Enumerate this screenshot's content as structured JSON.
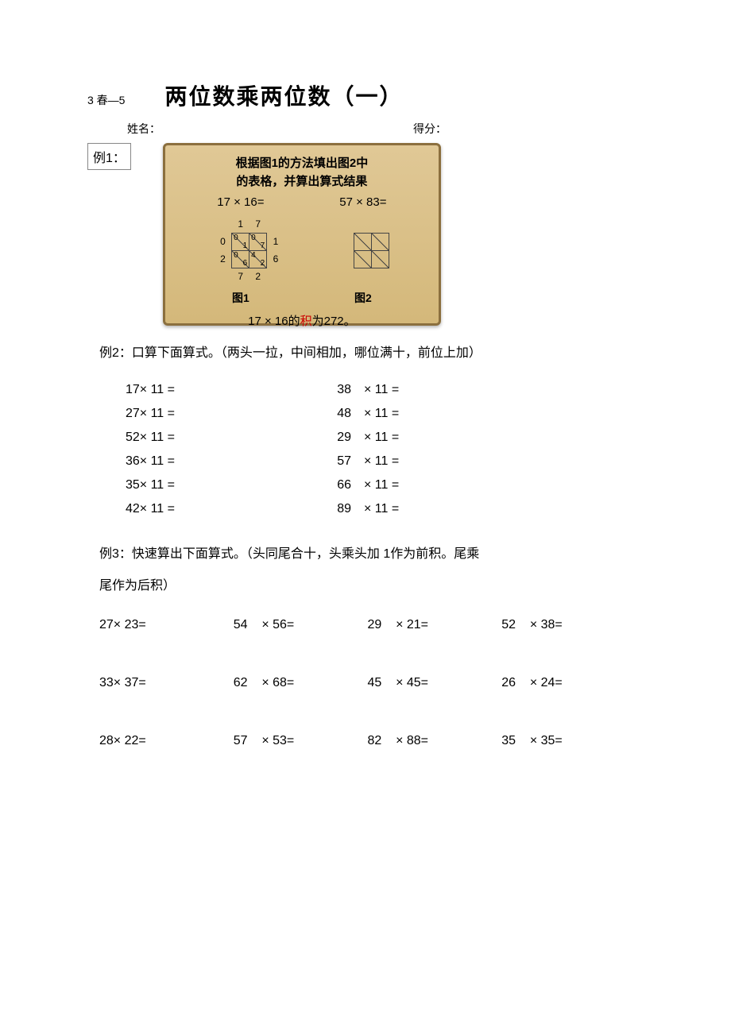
{
  "header": {
    "tag": "3 春—5",
    "title": "两位数乘两位数（一）",
    "name_label": "姓名：",
    "score_label": "得分："
  },
  "example1": {
    "label": "例1：",
    "scroll_text1": "根据图1的方法填出图2中",
    "scroll_text2": "的表格，并算出算式结果",
    "eq1": "17 × 16=",
    "eq2": "57 × 83=",
    "fig1_label": "图1",
    "fig2_label": "图2",
    "lattice1": {
      "top": [
        "1",
        "7"
      ],
      "cells": [
        [
          {
            "tl": "0",
            "br": "1"
          },
          {
            "tl": "0",
            "br": "7"
          }
        ],
        [
          {
            "tl": "0",
            "br": "6"
          },
          {
            "tl": "4",
            "br": "2"
          }
        ]
      ],
      "left": [
        "0",
        "2"
      ],
      "right": [
        "1",
        "6"
      ],
      "bottom": [
        "7",
        "2"
      ]
    },
    "lattice2": {
      "cells": [
        [
          {
            "tl": "",
            "br": ""
          },
          {
            "tl": "",
            "br": ""
          }
        ],
        [
          {
            "tl": "",
            "br": ""
          },
          {
            "tl": "",
            "br": ""
          }
        ]
      ]
    },
    "answer_pre": "17 × 16的",
    "answer_red": "积",
    "answer_post": "为272。"
  },
  "example2": {
    "title": "例2：口算下面算式。（两头一拉，中间相加，哪位满十，前位上加）",
    "rows": [
      {
        "left": "17× 11 =",
        "mid": "38",
        "right": "× 11 ="
      },
      {
        "left": "27× 11 =",
        "mid": "48",
        "right": "× 11 ="
      },
      {
        "left": "52× 11 =",
        "mid": "29",
        "right": "× 11 ="
      },
      {
        "left": "36× 11 =",
        "mid": "57",
        "right": "× 11 ="
      },
      {
        "left": "35× 11 =",
        "mid": "66",
        "right": "× 11 ="
      },
      {
        "left": "42× 11 =",
        "mid": "89",
        "right": "× 11 ="
      }
    ]
  },
  "example3": {
    "title_line1": "例3：快速算出下面算式。（头同尾合十，头乘头加 1作为前积。尾乘",
    "title_line2": "尾作为后积）",
    "rows": [
      [
        {
          "a": "27× 23=",
          "b": "54",
          "c": "× 56=",
          "d": "29",
          "e": "× 21=",
          "f": "52",
          "g": "× 38="
        }
      ],
      [
        {
          "a": "33× 37=",
          "b": "62",
          "c": "× 68=",
          "d": "45",
          "e": "× 45=",
          "f": "26",
          "g": "× 24="
        }
      ],
      [
        {
          "a": "28× 22=",
          "b": "57",
          "c": "× 53=",
          "d": "82",
          "e": "× 88=",
          "f": "35",
          "g": "× 35="
        }
      ]
    ]
  }
}
